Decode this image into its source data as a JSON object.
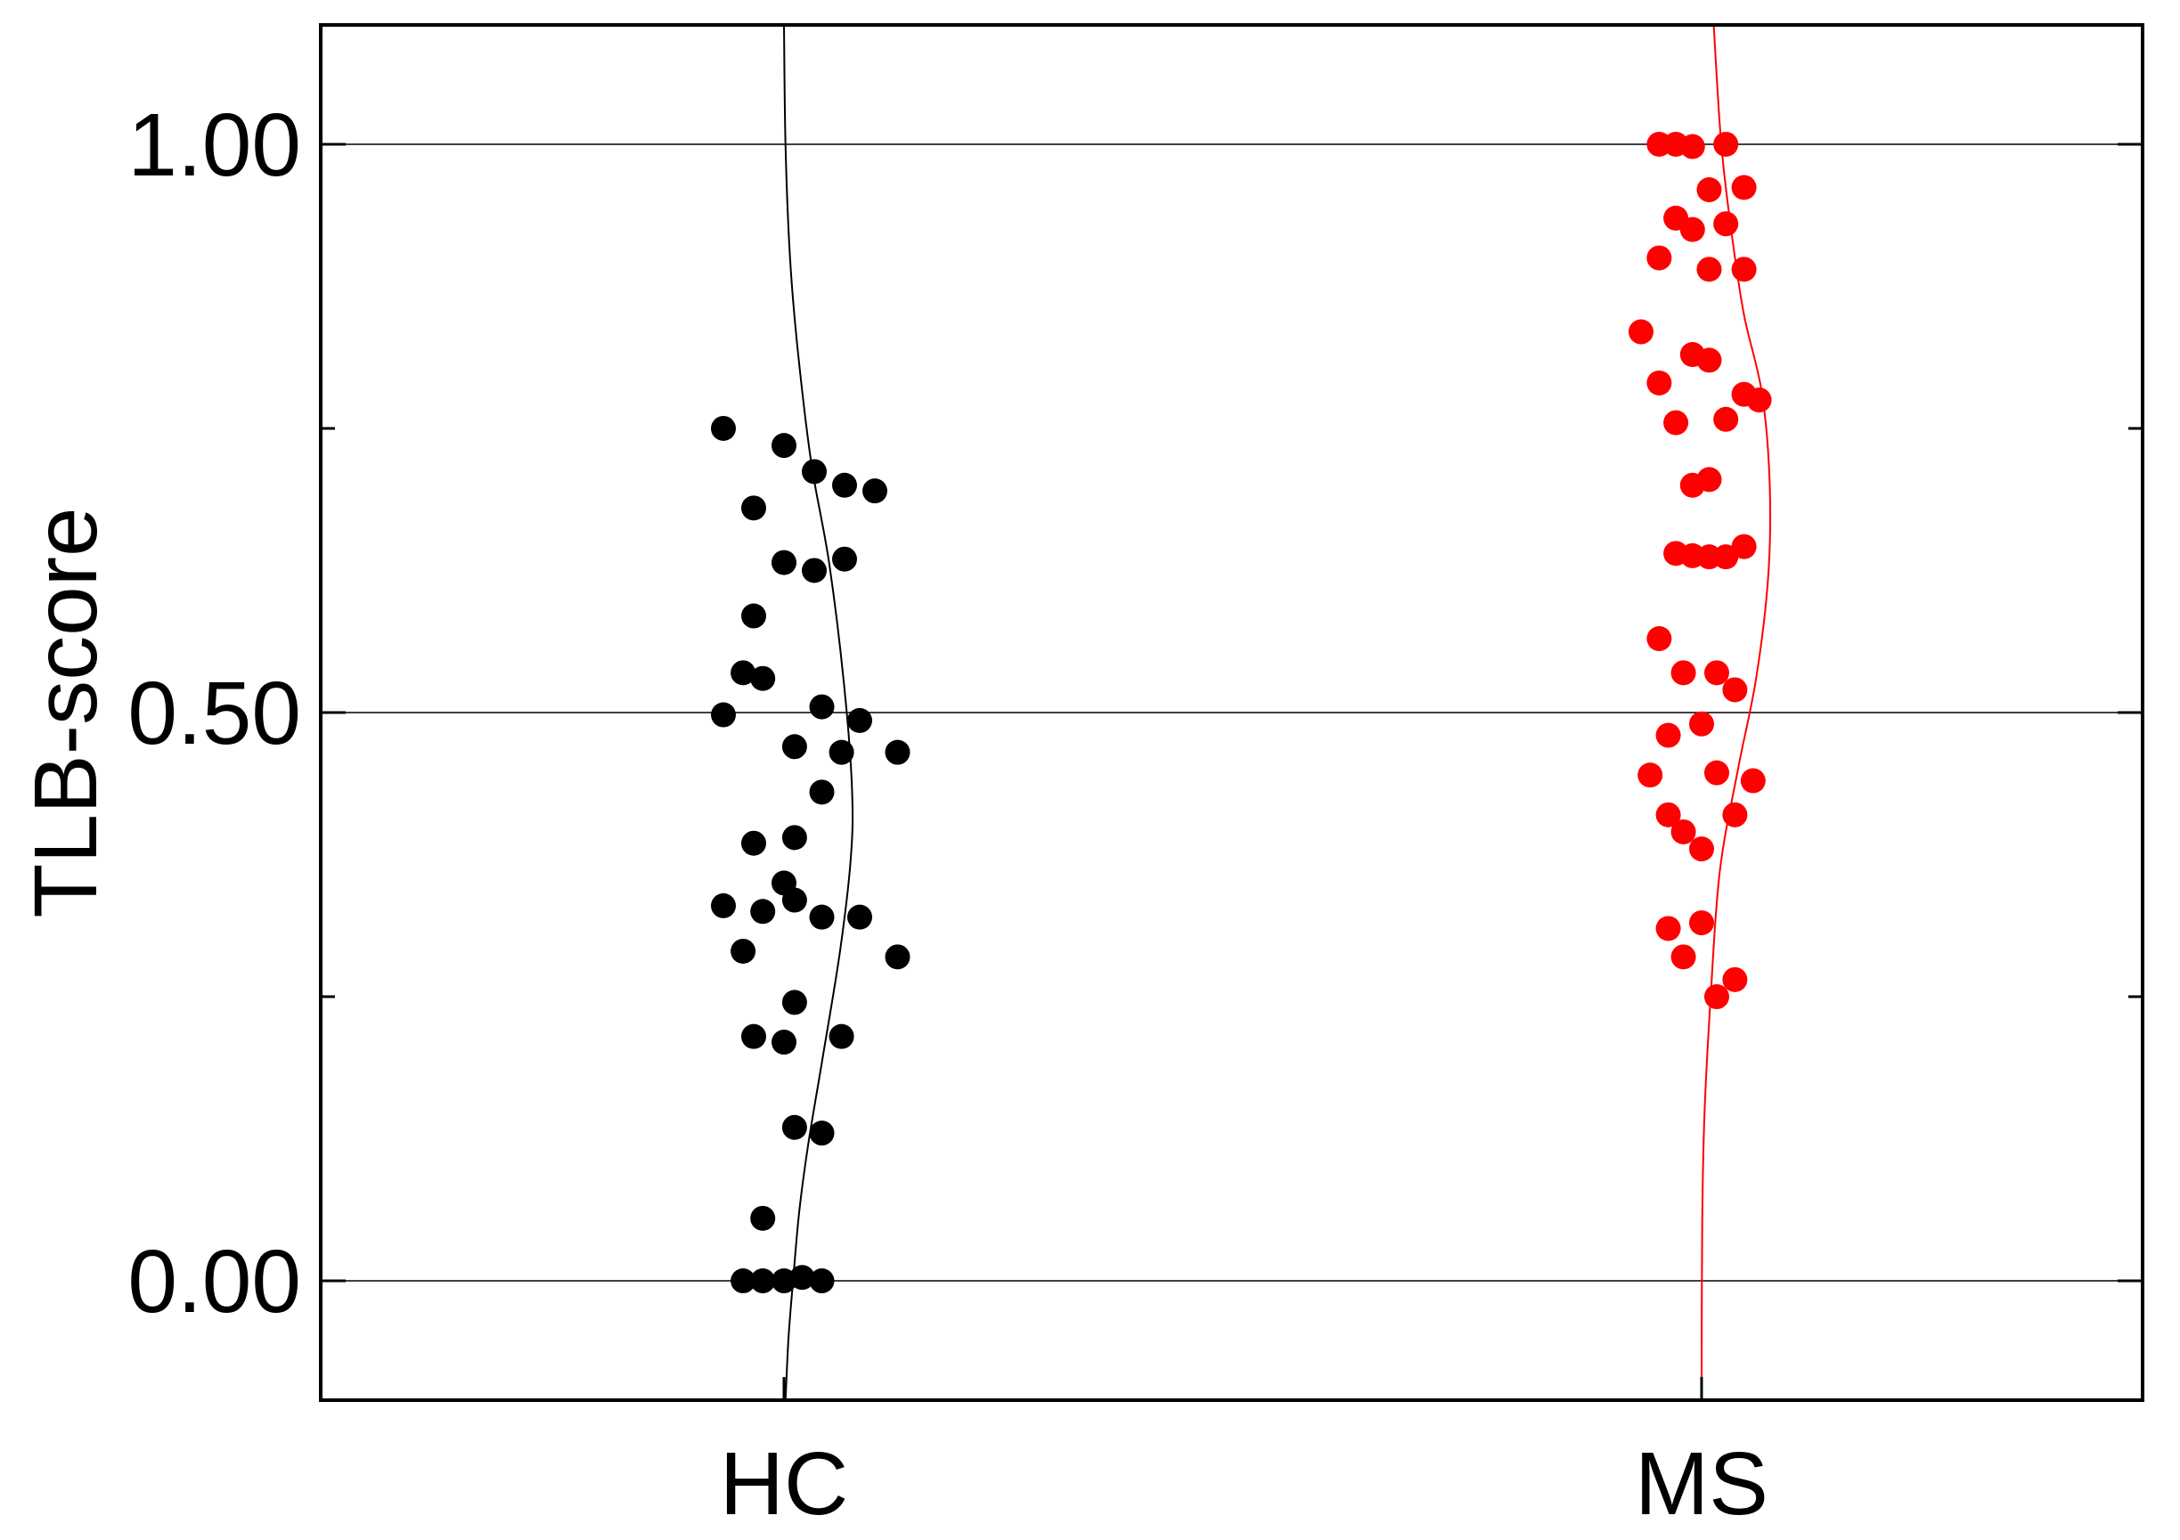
{
  "chart_data": {
    "type": "scatter",
    "ylabel": "TLB-score",
    "ylim": [
      -0.105,
      1.105
    ],
    "yticks": [
      0.0,
      0.5,
      1.0
    ],
    "ytick_labels": [
      "0.00",
      "0.50",
      "1.00"
    ],
    "y_minor_ticks": [
      0.25,
      0.75
    ],
    "grid": "horizontal at major ticks",
    "categories": [
      "HC",
      "MS"
    ],
    "series": [
      {
        "category": "HC",
        "color": "#000000",
        "points": [
          [
            -0.2,
            0.75
          ],
          [
            -0.1,
            0.68
          ],
          [
            0.0,
            0.735
          ],
          [
            0.1,
            0.712
          ],
          [
            0.2,
            0.7
          ],
          [
            0.3,
            0.695
          ],
          [
            0.0,
            0.632
          ],
          [
            0.1,
            0.625
          ],
          [
            0.2,
            0.635
          ],
          [
            -0.1,
            0.585
          ],
          [
            -0.135,
            0.535
          ],
          [
            -0.07,
            0.53
          ],
          [
            -0.2,
            0.498
          ],
          [
            0.125,
            0.505
          ],
          [
            0.25,
            0.493
          ],
          [
            0.035,
            0.47
          ],
          [
            0.19,
            0.465
          ],
          [
            0.375,
            0.465
          ],
          [
            0.125,
            0.43
          ],
          [
            -0.1,
            0.385
          ],
          [
            0.035,
            0.39
          ],
          [
            0.0,
            0.35
          ],
          [
            -0.2,
            0.33
          ],
          [
            -0.07,
            0.325
          ],
          [
            0.035,
            0.335
          ],
          [
            0.125,
            0.32
          ],
          [
            0.25,
            0.32
          ],
          [
            -0.135,
            0.29
          ],
          [
            0.375,
            0.285
          ],
          [
            -0.1,
            0.215
          ],
          [
            0.0,
            0.21
          ],
          [
            0.035,
            0.245
          ],
          [
            0.19,
            0.215
          ],
          [
            0.035,
            0.135
          ],
          [
            0.125,
            0.13
          ],
          [
            -0.07,
            0.055
          ],
          [
            -0.135,
            0.0
          ],
          [
            -0.07,
            0.0
          ],
          [
            0.0,
            0.0
          ],
          [
            0.06,
            0.003
          ],
          [
            0.125,
            0.0
          ]
        ],
        "fit_curve": [
          [
            0.0,
            1.105
          ],
          [
            0.005,
            1.0
          ],
          [
            0.02,
            0.9
          ],
          [
            0.045,
            0.82
          ],
          [
            0.09,
            0.72
          ],
          [
            0.15,
            0.63
          ],
          [
            0.2,
            0.52
          ],
          [
            0.225,
            0.43
          ],
          [
            0.22,
            0.37
          ],
          [
            0.185,
            0.29
          ],
          [
            0.13,
            0.2
          ],
          [
            0.08,
            0.12
          ],
          [
            0.05,
            0.06
          ],
          [
            0.03,
            0.0
          ],
          [
            0.015,
            -0.05
          ],
          [
            0.005,
            -0.105
          ]
        ]
      },
      {
        "category": "MS",
        "color": "#ff0000",
        "points": [
          [
            -0.14,
            1.0
          ],
          [
            -0.085,
            1.0
          ],
          [
            -0.03,
            0.998
          ],
          [
            0.08,
            1.0
          ],
          [
            0.025,
            0.96
          ],
          [
            0.14,
            0.962
          ],
          [
            -0.085,
            0.935
          ],
          [
            -0.03,
            0.925
          ],
          [
            0.08,
            0.93
          ],
          [
            -0.14,
            0.9
          ],
          [
            0.025,
            0.89
          ],
          [
            0.14,
            0.89
          ],
          [
            -0.2,
            0.835
          ],
          [
            -0.03,
            0.815
          ],
          [
            0.025,
            0.81
          ],
          [
            -0.14,
            0.79
          ],
          [
            0.14,
            0.78
          ],
          [
            0.19,
            0.775
          ],
          [
            -0.085,
            0.755
          ],
          [
            0.08,
            0.758
          ],
          [
            -0.03,
            0.7
          ],
          [
            0.025,
            0.705
          ],
          [
            -0.085,
            0.64
          ],
          [
            -0.03,
            0.638
          ],
          [
            0.025,
            0.637
          ],
          [
            0.08,
            0.637
          ],
          [
            0.14,
            0.646
          ],
          [
            -0.14,
            0.565
          ],
          [
            -0.06,
            0.535
          ],
          [
            0.05,
            0.535
          ],
          [
            0.11,
            0.52
          ],
          [
            -0.11,
            0.48
          ],
          [
            0.0,
            0.49
          ],
          [
            -0.17,
            0.445
          ],
          [
            0.05,
            0.447
          ],
          [
            0.17,
            0.44
          ],
          [
            -0.11,
            0.41
          ],
          [
            -0.06,
            0.395
          ],
          [
            0.11,
            0.41
          ],
          [
            0.0,
            0.38
          ],
          [
            -0.11,
            0.31
          ],
          [
            0.0,
            0.315
          ],
          [
            -0.06,
            0.285
          ],
          [
            0.05,
            0.25
          ],
          [
            0.11,
            0.265
          ]
        ],
        "fit_curve": [
          [
            0.04,
            1.105
          ],
          [
            0.065,
            1.0
          ],
          [
            0.1,
            0.92
          ],
          [
            0.14,
            0.85
          ],
          [
            0.2,
            0.78
          ],
          [
            0.225,
            0.7
          ],
          [
            0.22,
            0.62
          ],
          [
            0.18,
            0.53
          ],
          [
            0.12,
            0.45
          ],
          [
            0.06,
            0.36
          ],
          [
            0.03,
            0.25
          ],
          [
            0.01,
            0.15
          ],
          [
            0.002,
            0.05
          ],
          [
            0.0,
            -0.105
          ]
        ]
      }
    ]
  }
}
